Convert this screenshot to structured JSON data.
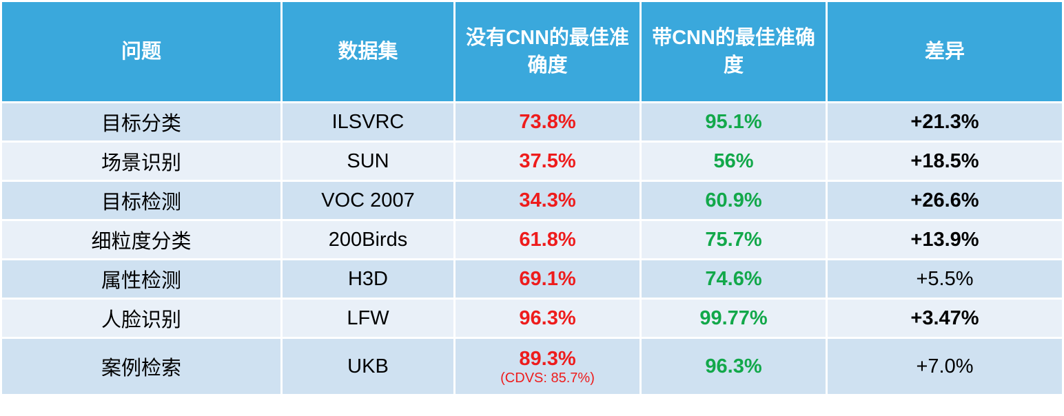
{
  "table": {
    "headers": [
      "问题",
      "数据集",
      "没有CNN的最佳准确度",
      "带CNN的最佳准确度",
      "差异"
    ],
    "rows": [
      [
        "目标分类",
        "ILSVRC",
        "73.8%",
        "95.1%",
        "+21.3%"
      ],
      [
        "场景识别",
        "SUN",
        "37.5%",
        "56%",
        "+18.5%"
      ],
      [
        "目标检测",
        "VOC 2007",
        "34.3%",
        "60.9%",
        "+26.6%"
      ],
      [
        "细粒度分类",
        "200Birds",
        "61.8%",
        "75.7%",
        "+13.9%"
      ],
      [
        "属性检测",
        "H3D",
        "69.1%",
        "74.6%",
        "+5.5%"
      ],
      [
        "人脸识别",
        "LFW",
        "96.3%",
        "99.77%",
        "+3.47%"
      ],
      [
        "案例检索",
        "UKB",
        "89.3%",
        "96.3%",
        "+7.0%"
      ]
    ],
    "note": "(CDVS: 85.7%)",
    "diff_bold": [
      true,
      true,
      true,
      true,
      false,
      true,
      false
    ]
  }
}
